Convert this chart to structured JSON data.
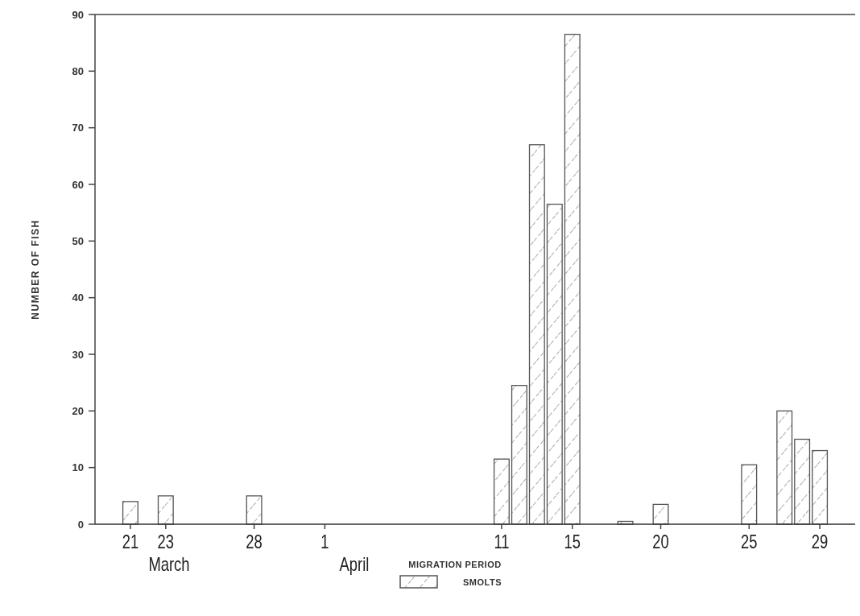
{
  "chart_data": {
    "type": "bar",
    "ylabel": "NUMBER OF FISH",
    "legend_title": "MIGRATION PERIOD",
    "legend": "bottom",
    "grid": false,
    "x": [
      "--03-21",
      "--03-23",
      "--03-28",
      "--04-11",
      "--04-12",
      "--04-13",
      "--04-14",
      "--04-15",
      "--04-18",
      "--04-20",
      "--04-25",
      "--04-27",
      "--04-28",
      "--04-29"
    ],
    "series": [
      {
        "name": "SMOLTS",
        "color": "#555555",
        "values": [
          4,
          5,
          5,
          11.5,
          24.5,
          67,
          56.5,
          86.5,
          0.5,
          3.5,
          10.5,
          20,
          15,
          13
        ]
      }
    ],
    "xlim": [
      "--03-19",
      "--05-01"
    ],
    "xticks": [
      {
        "value": "--03-21",
        "label": "21"
      },
      {
        "value": "--03-23",
        "label": "23"
      },
      {
        "value": "--03-28",
        "label": "28"
      },
      {
        "value": "--04-01",
        "label": "1"
      },
      {
        "value": "--04-11",
        "label": "11"
      },
      {
        "value": "--04-15",
        "label": "15"
      },
      {
        "value": "--04-20",
        "label": "20"
      },
      {
        "value": "--04-25",
        "label": "25"
      },
      {
        "value": "--04-29",
        "label": "29"
      }
    ],
    "annotations": [
      "March",
      "April"
    ],
    "ylim": [
      0,
      90
    ],
    "yticks": [
      0,
      10,
      20,
      30,
      40,
      50,
      60,
      70,
      80,
      90
    ]
  }
}
